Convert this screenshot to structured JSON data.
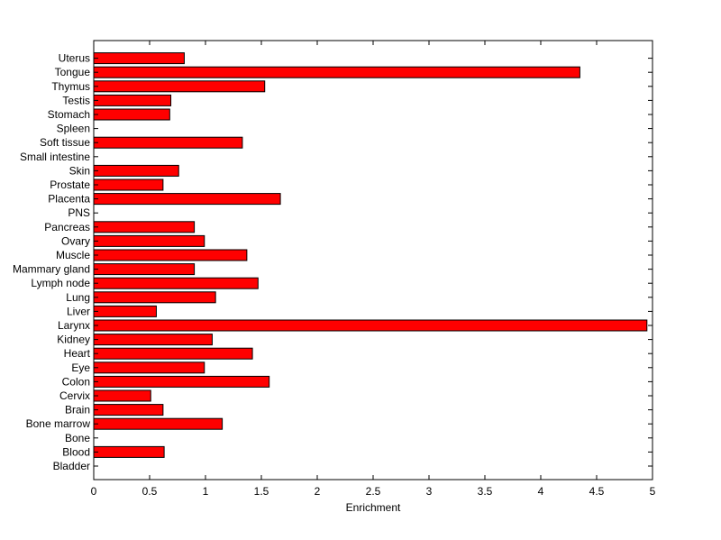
{
  "chart_data": {
    "type": "bar",
    "orientation": "horizontal",
    "xlabel": "Enrichment",
    "xlim": [
      0,
      5
    ],
    "xticks": [
      0,
      0.5,
      1,
      1.5,
      2,
      2.5,
      3,
      3.5,
      4,
      4.5,
      5
    ],
    "xtick_labels": [
      "0",
      "0.5",
      "1",
      "1.5",
      "2",
      "2.5",
      "3",
      "3.5",
      "4",
      "4.5",
      "5"
    ],
    "grid": false,
    "legend": "none",
    "bar_color": "#ff0000",
    "categories": [
      "Bladder",
      "Blood",
      "Bone",
      "Bone marrow",
      "Brain",
      "Cervix",
      "Colon",
      "Eye",
      "Heart",
      "Kidney",
      "Larynx",
      "Liver",
      "Lung",
      "Lymph node",
      "Mammary gland",
      "Muscle",
      "Ovary",
      "Pancreas",
      "PNS",
      "Placenta",
      "Prostate",
      "Skin",
      "Small intestine",
      "Soft tissue",
      "Spleen",
      "Stomach",
      "Testis",
      "Thymus",
      "Tongue",
      "Uterus"
    ],
    "values": [
      0,
      0.63,
      0,
      1.15,
      0.62,
      0.51,
      1.57,
      0.99,
      1.42,
      1.06,
      4.95,
      0.56,
      1.09,
      1.47,
      0.9,
      1.37,
      0.99,
      0.9,
      0,
      1.67,
      0.62,
      0.76,
      0,
      1.33,
      0,
      0.68,
      0.69,
      1.53,
      4.35,
      0.81
    ]
  }
}
